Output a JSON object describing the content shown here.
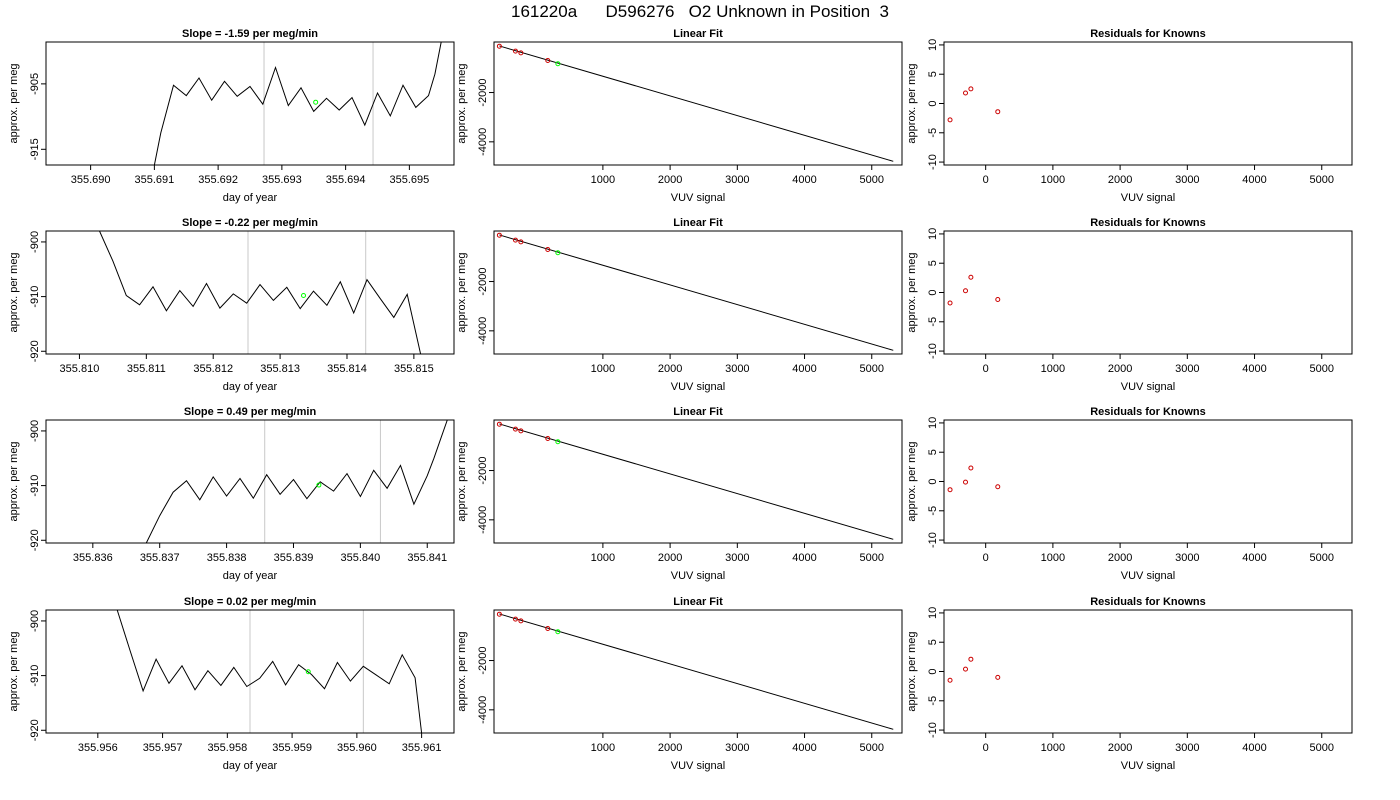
{
  "figure": {
    "title": "161220a      D596276   O2 Unknown in Position  3"
  },
  "chart_data": [
    {
      "type": "line",
      "title": "Slope =  -1.59  per meg/min",
      "xlabel": "day of year",
      "ylabel": "approx. per meg",
      "xlim": [
        355.6893,
        355.6957
      ],
      "ylim": [
        -917.4,
        -898.6
      ],
      "xticks": [
        "355.690",
        "355.691",
        "355.692",
        "355.693",
        "355.694",
        "355.695"
      ],
      "yticks": [
        "-905",
        "-915"
      ],
      "vlines": [
        355.69272,
        355.69443
      ],
      "marker": {
        "x": 355.69353,
        "y": -907.8,
        "color": "#00ff00"
      },
      "series": [
        {
          "x": [
            355.691,
            355.6911,
            355.6913,
            355.6915,
            355.6917,
            355.6919,
            355.6921,
            355.6923,
            355.6925,
            355.6927,
            355.6929,
            355.6931,
            355.6933,
            355.6935,
            355.6937,
            355.6939,
            355.6941,
            355.6943,
            355.6945,
            355.6947,
            355.6949,
            355.6951,
            355.6953,
            355.6954,
            355.6955
          ],
          "y": [
            -917.4,
            -912.5,
            -905.2,
            -906.8,
            -904.1,
            -907.5,
            -904.6,
            -906.9,
            -905.4,
            -908.1,
            -902.5,
            -908.3,
            -905.6,
            -909.2,
            -907.2,
            -909.0,
            -907.1,
            -911.3,
            -906.4,
            -909.9,
            -905.2,
            -908.6,
            -906.8,
            -903.5,
            -898.6
          ]
        }
      ]
    },
    {
      "type": "line",
      "title": "Linear Fit",
      "xlabel": "VUV signal",
      "ylabel": "approx. per meg",
      "xlim": [
        -620,
        5450
      ],
      "ylim": [
        -4940,
        50
      ],
      "xticks": [
        "1000",
        "2000",
        "3000",
        "4000",
        "5000"
      ],
      "yticks": [
        "-2000",
        "-4000"
      ],
      "fit": [
        {
          "x": -540,
          "y": -110
        },
        {
          "x": 5320,
          "y": -4790
        }
      ],
      "knowns": [
        {
          "x": -540,
          "y": -120
        },
        {
          "x": -300,
          "y": -320
        },
        {
          "x": -220,
          "y": -390
        },
        {
          "x": 180,
          "y": -700
        }
      ],
      "unknown": {
        "x": 330,
        "y": -830,
        "color": "#00ff00"
      }
    },
    {
      "type": "scatter",
      "title": "Residuals for Knowns",
      "xlabel": "VUV signal",
      "ylabel": "approx. per meg",
      "xlim": [
        -620,
        5450
      ],
      "ylim": [
        -10.5,
        10.5
      ],
      "xticks": [
        "0",
        "1000",
        "2000",
        "3000",
        "4000",
        "5000"
      ],
      "yticks": [
        "10",
        "5",
        "0",
        "-5",
        "-10"
      ],
      "points": [
        {
          "x": -530,
          "y": -2.8
        },
        {
          "x": -300,
          "y": 1.8
        },
        {
          "x": -220,
          "y": 2.5
        },
        {
          "x": 180,
          "y": -1.4
        }
      ]
    },
    {
      "type": "line",
      "title": "Slope =  -0.22  per meg/min",
      "xlabel": "day of year",
      "ylabel": "approx. per meg",
      "xlim": [
        355.8095,
        355.8156
      ],
      "ylim": [
        -920.5,
        -898.0
      ],
      "xticks": [
        "355.810",
        "355.811",
        "355.812",
        "355.813",
        "355.814",
        "355.815"
      ],
      "yticks": [
        "-900",
        "-910",
        "-920"
      ],
      "vlines": [
        355.81252,
        355.81428
      ],
      "marker": {
        "x": 355.81335,
        "y": -909.8,
        "color": "#00ff00"
      },
      "series": [
        {
          "x": [
            355.8103,
            355.8105,
            355.8107,
            355.8109,
            355.8111,
            355.8113,
            355.8115,
            355.8117,
            355.8119,
            355.8121,
            355.8123,
            355.8125,
            355.8127,
            355.8129,
            355.8131,
            355.8133,
            355.8135,
            355.8137,
            355.8139,
            355.8141,
            355.8143,
            355.8145,
            355.8147,
            355.8149,
            355.8151
          ],
          "y": [
            -898.0,
            -903.5,
            -909.8,
            -911.5,
            -908.2,
            -912.6,
            -908.9,
            -911.8,
            -907.6,
            -912.1,
            -909.5,
            -911.2,
            -907.8,
            -910.7,
            -908.3,
            -912.2,
            -909.0,
            -911.6,
            -907.3,
            -913.0,
            -906.9,
            -910.4,
            -913.8,
            -909.6,
            -920.5
          ]
        }
      ]
    },
    {
      "type": "line",
      "title": "Linear Fit",
      "xlabel": "VUV signal",
      "ylabel": "approx. per meg",
      "xlim": [
        -620,
        5450
      ],
      "ylim": [
        -4940,
        50
      ],
      "xticks": [
        "1000",
        "2000",
        "3000",
        "4000",
        "5000"
      ],
      "yticks": [
        "-2000",
        "-4000"
      ],
      "fit": [
        {
          "x": -540,
          "y": -110
        },
        {
          "x": 5320,
          "y": -4790
        }
      ],
      "knowns": [
        {
          "x": -540,
          "y": -120
        },
        {
          "x": -300,
          "y": -320
        },
        {
          "x": -220,
          "y": -390
        },
        {
          "x": 180,
          "y": -700
        }
      ],
      "unknown": {
        "x": 330,
        "y": -830,
        "color": "#00ff00"
      }
    },
    {
      "type": "scatter",
      "title": "Residuals for Knowns",
      "xlabel": "VUV signal",
      "ylabel": "approx. per meg",
      "xlim": [
        -620,
        5450
      ],
      "ylim": [
        -10.5,
        10.5
      ],
      "xticks": [
        "0",
        "1000",
        "2000",
        "3000",
        "4000",
        "5000"
      ],
      "yticks": [
        "10",
        "5",
        "0",
        "-5",
        "-10"
      ],
      "points": [
        {
          "x": -530,
          "y": -1.8
        },
        {
          "x": -300,
          "y": 0.3
        },
        {
          "x": -220,
          "y": 2.6
        },
        {
          "x": 180,
          "y": -1.2
        }
      ]
    },
    {
      "type": "line",
      "title": "Slope =  0.49  per meg/min",
      "xlabel": "day of year",
      "ylabel": "approx. per meg",
      "xlim": [
        355.8353,
        355.8414
      ],
      "ylim": [
        -920.5,
        -898.0
      ],
      "xticks": [
        "355.836",
        "355.837",
        "355.838",
        "355.839",
        "355.840",
        "355.841"
      ],
      "yticks": [
        "-900",
        "-910",
        "-920"
      ],
      "vlines": [
        355.83857,
        355.8403
      ],
      "marker": {
        "x": 355.83938,
        "y": -909.9,
        "color": "#00ff00"
      },
      "series": [
        {
          "x": [
            355.8368,
            355.837,
            355.8372,
            355.8374,
            355.8376,
            355.8378,
            355.838,
            355.8382,
            355.8384,
            355.8386,
            355.8388,
            355.839,
            355.8392,
            355.8394,
            355.8396,
            355.8398,
            355.84,
            355.8402,
            355.8404,
            355.8406,
            355.8408,
            355.841,
            355.8411,
            355.8412,
            355.8413
          ],
          "y": [
            -920.5,
            -915.5,
            -911.2,
            -909.1,
            -912.6,
            -908.4,
            -911.9,
            -908.7,
            -912.3,
            -908.0,
            -911.6,
            -908.9,
            -912.4,
            -909.3,
            -911.0,
            -907.8,
            -912.0,
            -907.2,
            -910.5,
            -906.3,
            -913.4,
            -908.2,
            -905.0,
            -901.5,
            -898.0
          ]
        }
      ]
    },
    {
      "type": "line",
      "title": "Linear Fit",
      "xlabel": "VUV signal",
      "ylabel": "approx. per meg",
      "xlim": [
        -620,
        5450
      ],
      "ylim": [
        -4940,
        50
      ],
      "xticks": [
        "1000",
        "2000",
        "3000",
        "4000",
        "5000"
      ],
      "yticks": [
        "-2000",
        "-4000"
      ],
      "fit": [
        {
          "x": -540,
          "y": -110
        },
        {
          "x": 5320,
          "y": -4790
        }
      ],
      "knowns": [
        {
          "x": -540,
          "y": -120
        },
        {
          "x": -300,
          "y": -320
        },
        {
          "x": -220,
          "y": -390
        },
        {
          "x": 180,
          "y": -700
        }
      ],
      "unknown": {
        "x": 330,
        "y": -830,
        "color": "#00ff00"
      }
    },
    {
      "type": "scatter",
      "title": "Residuals for Knowns",
      "xlabel": "VUV signal",
      "ylabel": "approx. per meg",
      "xlim": [
        -620,
        5450
      ],
      "ylim": [
        -10.5,
        10.5
      ],
      "xticks": [
        "0",
        "1000",
        "2000",
        "3000",
        "4000",
        "5000"
      ],
      "yticks": [
        "10",
        "5",
        "0",
        "-5",
        "-10"
      ],
      "points": [
        {
          "x": -530,
          "y": -1.4
        },
        {
          "x": -300,
          "y": -0.1
        },
        {
          "x": -220,
          "y": 2.3
        },
        {
          "x": 180,
          "y": -0.9
        }
      ]
    },
    {
      "type": "line",
      "title": "Slope =  0.02  per meg/min",
      "xlabel": "day of year",
      "ylabel": "approx. per meg",
      "xlim": [
        355.9552,
        355.9615
      ],
      "ylim": [
        -920.5,
        -898.0
      ],
      "xticks": [
        "355.956",
        "355.957",
        "355.958",
        "355.959",
        "355.960",
        "355.961"
      ],
      "yticks": [
        "-900",
        "-910",
        "-920"
      ],
      "vlines": [
        355.95835,
        355.9601
      ],
      "marker": {
        "x": 355.95925,
        "y": -909.3,
        "color": "#00ff00"
      },
      "series": [
        {
          "x": [
            355.9563,
            355.9565,
            355.9567,
            355.9569,
            355.9571,
            355.9573,
            355.9575,
            355.9577,
            355.9579,
            355.9581,
            355.9583,
            355.9585,
            355.9587,
            355.9589,
            355.9591,
            355.9593,
            355.9595,
            355.9597,
            355.9599,
            355.9601,
            355.9603,
            355.9605,
            355.9607,
            355.9609,
            355.961
          ],
          "y": [
            -898.0,
            -905.5,
            -912.8,
            -907.0,
            -911.4,
            -908.2,
            -912.6,
            -909.1,
            -911.8,
            -908.5,
            -912.0,
            -910.5,
            -907.4,
            -911.7,
            -908.0,
            -909.8,
            -912.4,
            -907.6,
            -911.0,
            -908.3,
            -909.9,
            -911.5,
            -906.2,
            -910.4,
            -920.5
          ]
        }
      ]
    },
    {
      "type": "line",
      "title": "Linear Fit",
      "xlabel": "VUV signal",
      "ylabel": "approx. per meg",
      "xlim": [
        -620,
        5450
      ],
      "ylim": [
        -4940,
        50
      ],
      "xticks": [
        "1000",
        "2000",
        "3000",
        "4000",
        "5000"
      ],
      "yticks": [
        "-2000",
        "-4000"
      ],
      "fit": [
        {
          "x": -540,
          "y": -110
        },
        {
          "x": 5320,
          "y": -4790
        }
      ],
      "knowns": [
        {
          "x": -540,
          "y": -120
        },
        {
          "x": -300,
          "y": -320
        },
        {
          "x": -220,
          "y": -390
        },
        {
          "x": 180,
          "y": -700
        }
      ],
      "unknown": {
        "x": 330,
        "y": -830,
        "color": "#00ff00"
      }
    },
    {
      "type": "scatter",
      "title": "Residuals for Knowns",
      "xlabel": "VUV signal",
      "ylabel": "approx. per meg",
      "xlim": [
        -620,
        5450
      ],
      "ylim": [
        -10.5,
        10.5
      ],
      "xticks": [
        "0",
        "1000",
        "2000",
        "3000",
        "4000",
        "5000"
      ],
      "yticks": [
        "10",
        "5",
        "0",
        "-5",
        "-10"
      ],
      "points": [
        {
          "x": -530,
          "y": -1.5
        },
        {
          "x": -300,
          "y": 0.4
        },
        {
          "x": -220,
          "y": 2.1
        },
        {
          "x": 180,
          "y": -1.0
        }
      ]
    }
  ]
}
